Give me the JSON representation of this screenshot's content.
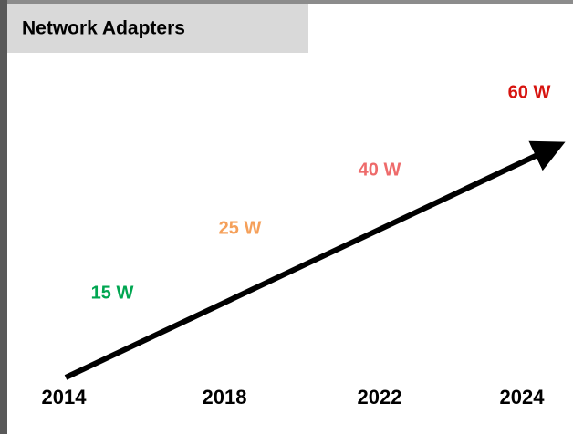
{
  "title": "Network Adapters",
  "milestones": [
    {
      "year": "2014",
      "label": "15 W",
      "color": "#00a651"
    },
    {
      "year": "2018",
      "label": "25 W",
      "color": "#f5a05a"
    },
    {
      "year": "2022",
      "label": "40 W",
      "color": "#ee6b6b"
    },
    {
      "year": "2024",
      "label": "60 W",
      "color": "#d7140f"
    }
  ]
}
